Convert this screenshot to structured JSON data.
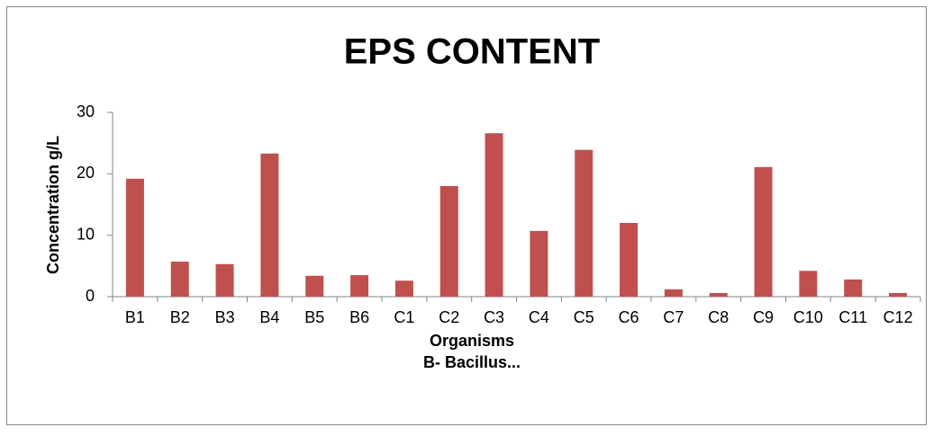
{
  "chart_data": {
    "type": "bar",
    "title": "EPS CONTENT",
    "xlabel": [
      "Organisms",
      "B- Bacillus..."
    ],
    "ylabel": "Concentration g/L",
    "categories": [
      "B1",
      "B2",
      "B3",
      "B4",
      "B5",
      "B6",
      "C1",
      "C2",
      "C3",
      "C4",
      "C5",
      "C6",
      "C7",
      "C8",
      "C9",
      "C10",
      "C11",
      "C12"
    ],
    "values": [
      19.2,
      5.7,
      5.3,
      23.3,
      3.4,
      3.5,
      2.6,
      18.0,
      26.6,
      10.7,
      23.9,
      12.0,
      1.2,
      0.6,
      21.1,
      4.2,
      2.8,
      0.6
    ],
    "color": "#c0504d",
    "ylim": [
      0,
      30
    ],
    "yticks": [
      0,
      10,
      20,
      30
    ],
    "grid": false
  }
}
